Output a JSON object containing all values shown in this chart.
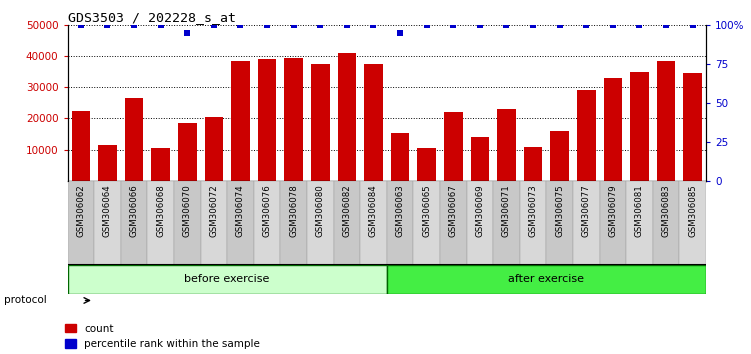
{
  "title": "GDS3503 / 202228_s_at",
  "categories": [
    "GSM306062",
    "GSM306064",
    "GSM306066",
    "GSM306068",
    "GSM306070",
    "GSM306072",
    "GSM306074",
    "GSM306076",
    "GSM306078",
    "GSM306080",
    "GSM306082",
    "GSM306084",
    "GSM306063",
    "GSM306065",
    "GSM306067",
    "GSM306069",
    "GSM306071",
    "GSM306073",
    "GSM306075",
    "GSM306077",
    "GSM306079",
    "GSM306081",
    "GSM306083",
    "GSM306085"
  ],
  "counts": [
    22500,
    11500,
    26500,
    10500,
    18500,
    20500,
    38500,
    39000,
    39500,
    37500,
    41000,
    37500,
    15500,
    10500,
    22000,
    14000,
    23000,
    11000,
    16000,
    29000,
    33000,
    35000,
    38500,
    34500
  ],
  "percentile_ranks": [
    100,
    100,
    100,
    100,
    95,
    100,
    100,
    100,
    100,
    100,
    100,
    100,
    95,
    100,
    100,
    100,
    100,
    100,
    100,
    100,
    100,
    100,
    100,
    100
  ],
  "before_exercise_count": 12,
  "after_exercise_count": 12,
  "group_labels": [
    "before exercise",
    "after exercise"
  ],
  "group_color_before": "#ccffcc",
  "group_color_after": "#44ee44",
  "bar_color": "#cc0000",
  "percentile_color": "#0000cc",
  "ylim_left": [
    0,
    50000
  ],
  "ylim_right": [
    0,
    100
  ],
  "yticks_left": [
    10000,
    20000,
    30000,
    40000,
    50000
  ],
  "ytick_labels_left": [
    "10000",
    "20000",
    "30000",
    "40000",
    "50000"
  ],
  "yticks_right": [
    0,
    25,
    50,
    75,
    100
  ],
  "ytick_labels_right": [
    "0",
    "25",
    "50",
    "75",
    "100%"
  ],
  "xtick_box_colors": [
    "#c8c8c8",
    "#d8d8d8"
  ],
  "legend_items": [
    "count",
    "percentile rank within the sample"
  ]
}
